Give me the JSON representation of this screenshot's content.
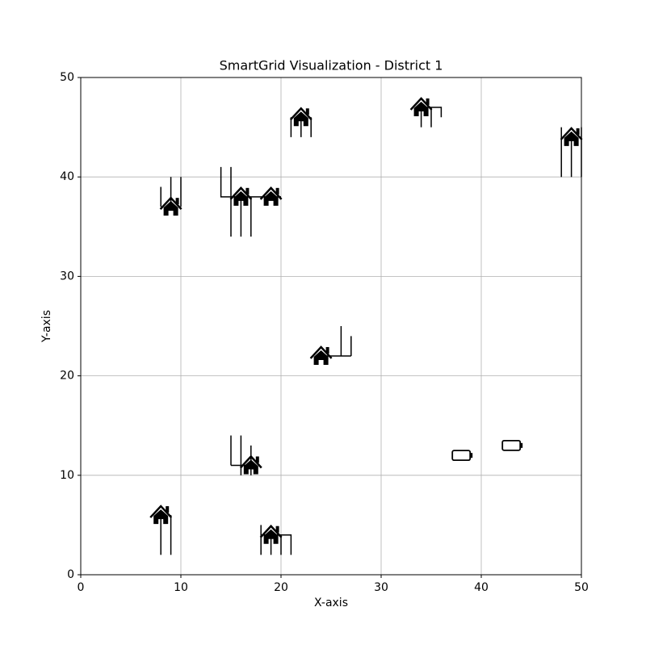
{
  "chart_data": {
    "type": "scatter",
    "title": "SmartGrid Visualization - District 1",
    "x_label": "X-axis",
    "y_label": "Y-axis",
    "xlim": [
      0,
      50
    ],
    "ylim": [
      0,
      50
    ],
    "xticks": [
      0,
      10,
      20,
      30,
      40,
      50
    ],
    "yticks": [
      0,
      10,
      20,
      30,
      40,
      50
    ],
    "grid": true,
    "houses": {
      "x": [
        9,
        16,
        19,
        22,
        34,
        49,
        24,
        17,
        8,
        19
      ],
      "y": [
        37,
        38,
        38,
        46,
        47,
        44,
        22,
        11,
        6,
        4
      ]
    },
    "batteries": {
      "x": [
        38,
        43
      ],
      "y": [
        12,
        13
      ]
    },
    "cables": [
      {
        "x": [
          8,
          8,
          null,
          9,
          9,
          null,
          10,
          10
        ],
        "y": [
          39,
          37,
          null,
          40,
          37,
          null,
          40,
          37
        ]
      },
      {
        "x": [
          14,
          14,
          20,
          null,
          15,
          15,
          null,
          16,
          16,
          null,
          17,
          17
        ],
        "y": [
          41,
          38,
          38,
          null,
          41,
          34,
          null,
          38,
          34,
          null,
          38,
          34
        ]
      },
      {
        "x": [
          21,
          21,
          null,
          22,
          22,
          null,
          23,
          23
        ],
        "y": [
          46,
          44,
          null,
          46,
          44,
          null,
          46,
          44
        ]
      },
      {
        "x": [
          34,
          36,
          36,
          null,
          34,
          34,
          null,
          35,
          35
        ],
        "y": [
          47,
          47,
          46,
          null,
          47,
          45,
          null,
          47,
          45
        ]
      },
      {
        "x": [
          48,
          48,
          null,
          49,
          49,
          null,
          50,
          50
        ],
        "y": [
          45,
          40,
          null,
          44,
          40,
          null,
          45,
          40
        ]
      },
      {
        "x": [
          24,
          27,
          null,
          26,
          26,
          null,
          27,
          27
        ],
        "y": [
          22,
          22,
          null,
          25,
          22,
          null,
          24,
          22
        ]
      },
      {
        "x": [
          15,
          17,
          null,
          15,
          15,
          null,
          16,
          16,
          null,
          17,
          17
        ],
        "y": [
          11,
          11,
          null,
          14,
          11,
          null,
          14,
          10,
          null,
          13,
          10
        ]
      },
      {
        "x": [
          8,
          8,
          null,
          9,
          9
        ],
        "y": [
          6,
          2,
          null,
          6,
          2
        ]
      },
      {
        "x": [
          18,
          21,
          21,
          null,
          18,
          18,
          null,
          19,
          19,
          null,
          20,
          20
        ],
        "y": [
          4,
          4,
          2,
          null,
          5,
          2,
          null,
          4,
          2,
          null,
          4,
          2
        ]
      }
    ]
  }
}
